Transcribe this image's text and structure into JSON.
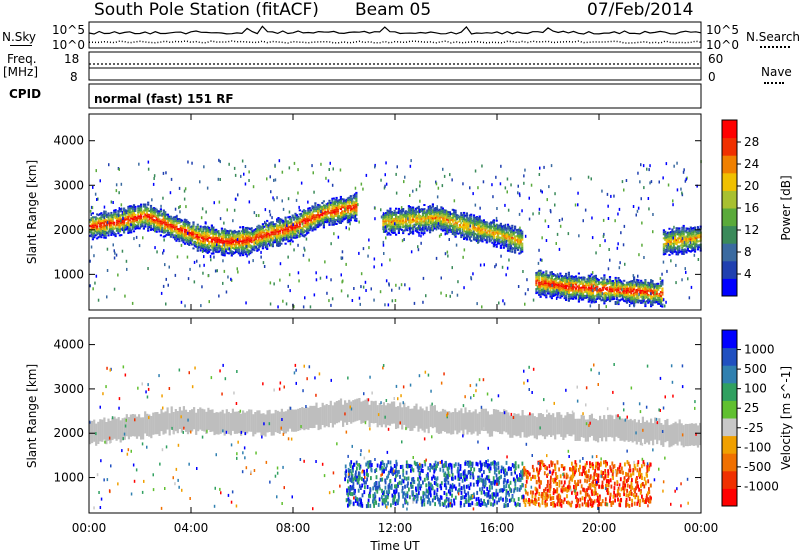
{
  "header": {
    "station": "South Pole Station (fitACF)",
    "beam": "Beam 05",
    "date": "07/Feb/2014"
  },
  "left_labels": {
    "nsky": "N.Sky",
    "freq_line1": "Freq.",
    "freq_line2": "[MHz]",
    "cpid": "CPID"
  },
  "right_labels": {
    "nsearch": "N.Search",
    "nave": "Nave"
  },
  "noise_axis": {
    "top": "10^5",
    "bottom": "10^0"
  },
  "freq_axis": {
    "ticks": [
      "18",
      "8"
    ]
  },
  "nave_axis": {
    "ticks": [
      "60",
      "0"
    ]
  },
  "cpid_text": "normal (fast) 151 RF",
  "colors": {
    "power_scale": [
      "#0000ff",
      "#2040b0",
      "#3a6aa0",
      "#3a8a5a",
      "#5aaa3a",
      "#a8c030",
      "#f0c000",
      "#f08000",
      "#f03000",
      "#ff0000"
    ],
    "velocity_scale": [
      "#0000ff",
      "#2050c0",
      "#3080b0",
      "#30a060",
      "#60c030",
      "#c8c8c8",
      "#f0a000",
      "#f07000",
      "#f03000",
      "#ff0000"
    ],
    "ground_scatter": "#bebebe"
  },
  "chart_data": [
    {
      "type": "heatmap",
      "panel": "power",
      "x_ticks": [
        "00:00",
        "04:00",
        "08:00",
        "12:00",
        "16:00",
        "20:00",
        "00:00"
      ],
      "xlabel": "Time UT",
      "ylabel": "Slant Range [km]",
      "y_ticks": [
        1000,
        2000,
        3000,
        4000
      ],
      "ylim": [
        200,
        4600
      ],
      "colorbar": {
        "label": "Power [dB]",
        "ticks": [
          4,
          8,
          12,
          16,
          20,
          24,
          28
        ]
      },
      "echo_bands": [
        {
          "t_start": 0.0,
          "t_end": 6.5,
          "range_center": [
            2050,
            2150,
            2300,
            2050,
            1800,
            1700,
            1750
          ],
          "strength": "high"
        },
        {
          "t_start": 6.5,
          "t_end": 10.5,
          "range_center": [
            1800,
            2000,
            2350,
            2500
          ],
          "strength": "high"
        },
        {
          "t_start": 11.5,
          "t_end": 17.0,
          "range_center": [
            2150,
            2200,
            2250,
            2050,
            1900,
            1700
          ],
          "strength": "medium"
        },
        {
          "t_start": 17.5,
          "t_end": 22.5,
          "range_center": [
            800,
            700,
            650,
            600,
            550
          ],
          "strength": "high"
        },
        {
          "t_start": 22.5,
          "t_end": 24.0,
          "range_center": [
            1700,
            1750,
            1800
          ],
          "strength": "medium"
        }
      ]
    },
    {
      "type": "heatmap",
      "panel": "velocity",
      "x_ticks": [
        "00:00",
        "04:00",
        "08:00",
        "12:00",
        "16:00",
        "20:00",
        "00:00"
      ],
      "xlabel": "Time UT",
      "ylabel": "Slant Range [km]",
      "y_ticks": [
        1000,
        2000,
        3000,
        4000
      ],
      "ylim": [
        200,
        4600
      ],
      "colorbar": {
        "label": "Velocity [m s^-1]",
        "ticks": [
          "1000",
          "500",
          "100",
          "25",
          "-25",
          "-100",
          "-500",
          "-1000"
        ]
      },
      "ground_scatter_band": {
        "t_start": 0.0,
        "t_end": 24.0,
        "range_center": [
          2000,
          2300,
          2200,
          2500,
          2300,
          2200,
          2100,
          1950
        ],
        "width": 500
      }
    }
  ]
}
